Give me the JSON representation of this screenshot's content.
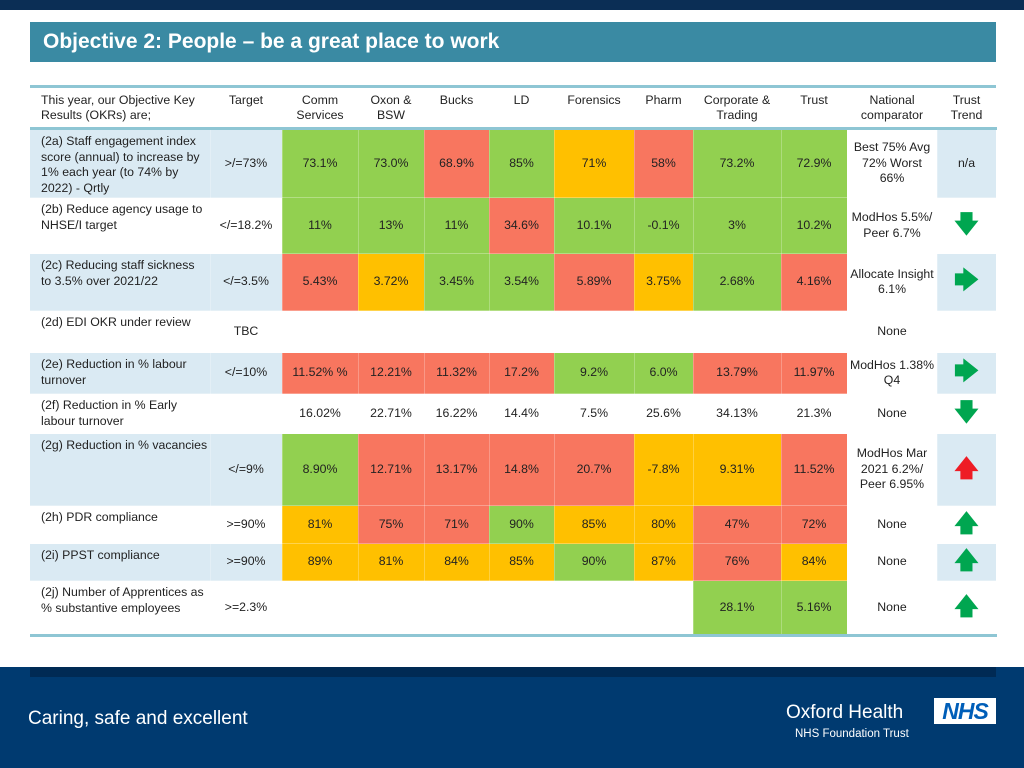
{
  "title": "Objective 2: People – be a great place to work",
  "colors": {
    "green": "#92d050",
    "red": "#f8765f",
    "amber": "#ffc000",
    "title_bar": "#3a8aa3",
    "footer": "#003a70"
  },
  "headers": [
    "This year, our Objective Key Results (OKRs) are;",
    "Target",
    "Comm Services",
    "Oxon & BSW",
    "Bucks",
    "LD",
    "Forensics",
    "Pharm",
    "Corporate & Trading",
    "Trust",
    "National comparator",
    "Trust Trend"
  ],
  "rows": [
    {
      "label": "(2a) Staff engagement index score (annual) to increase by 1% each year (to 74% by 2022) - Qrtly",
      "target": ">/=73%",
      "values": [
        "73.1%",
        "73.0%",
        "68.9%",
        "85%",
        "71%",
        "58%",
        "73.2%",
        "72.9%"
      ],
      "status": [
        "G",
        "G",
        "R",
        "G",
        "A",
        "R",
        "G",
        "G"
      ],
      "comparator": "Best 75% Avg 72% Worst 66%",
      "trend": "n/a",
      "trend_icon": "",
      "trend_color": ""
    },
    {
      "label": "(2b) Reduce agency usage to NHSE/I target",
      "target": "</=18.2%",
      "values": [
        "11%",
        "13%",
        "11%",
        "34.6%",
        "10.1%",
        "-0.1%",
        "3%",
        "10.2%"
      ],
      "status": [
        "G",
        "G",
        "G",
        "R",
        "G",
        "G",
        "G",
        "G"
      ],
      "comparator": "ModHos 5.5%/ Peer 6.7%",
      "trend": "",
      "trend_icon": "arrow-down",
      "trend_color": "#00a650"
    },
    {
      "label": "(2c) Reducing staff sickness to 3.5% over 2021/22",
      "target": "</=3.5%",
      "values": [
        "5.43%",
        "3.72%",
        "3.45%",
        "3.54%",
        "5.89%",
        "3.75%",
        "2.68%",
        "4.16%"
      ],
      "status": [
        "R",
        "A",
        "G",
        "G",
        "R",
        "A",
        "G",
        "R"
      ],
      "comparator": "Allocate Insight 6.1%",
      "trend": "",
      "trend_icon": "arrow-right",
      "trend_color": "#00a650"
    },
    {
      "label": "(2d) EDI OKR under review",
      "target": "TBC",
      "values": [
        "",
        "",
        "",
        "",
        "",
        "",
        "",
        ""
      ],
      "status": [
        "",
        "",
        "",
        "",
        "",
        "",
        "",
        ""
      ],
      "comparator": "None",
      "trend": "",
      "trend_icon": "",
      "trend_color": ""
    },
    {
      "label": "(2e) Reduction in % labour turnover",
      "target": "</=10%",
      "values": [
        "11.52% %",
        "12.21%",
        "11.32%",
        "17.2%",
        "9.2%",
        "6.0%",
        "13.79%",
        "11.97%"
      ],
      "status": [
        "R",
        "R",
        "R",
        "R",
        "G",
        "G",
        "R",
        "R"
      ],
      "comparator": "ModHos 1.38% Q4",
      "trend": "",
      "trend_icon": "arrow-right",
      "trend_color": "#00a650"
    },
    {
      "label": "(2f) Reduction in % Early labour turnover",
      "target": "",
      "values": [
        "16.02%",
        "22.71%",
        "16.22%",
        "14.4%",
        "7.5%",
        "25.6%",
        "34.13%",
        "21.3%"
      ],
      "status": [
        "",
        "",
        "",
        "",
        "",
        "",
        "",
        ""
      ],
      "comparator": "None",
      "trend": "",
      "trend_icon": "arrow-down",
      "trend_color": "#00a650"
    },
    {
      "label": "(2g) Reduction in % vacancies",
      "target": "</=9%",
      "values": [
        "8.90%",
        "12.71%",
        "13.17%",
        "14.8%",
        "20.7%",
        "-7.8%",
        "9.31%",
        "11.52%"
      ],
      "status": [
        "G",
        "R",
        "R",
        "R",
        "R",
        "A",
        "A",
        "R"
      ],
      "comparator": "ModHos Mar 2021 6.2%/ Peer 6.95%",
      "trend": "",
      "trend_icon": "arrow-up",
      "trend_color": "#ee1c25"
    },
    {
      "label": "(2h) PDR compliance",
      "target": ">=90%",
      "values": [
        "81%",
        "75%",
        "71%",
        "90%",
        "85%",
        "80%",
        "47%",
        "72%"
      ],
      "status": [
        "A",
        "R",
        "R",
        "G",
        "A",
        "A",
        "R",
        "R"
      ],
      "comparator": "None",
      "trend": "",
      "trend_icon": "arrow-up",
      "trend_color": "#00a650"
    },
    {
      "label": "(2i) PPST compliance",
      "target": ">=90%",
      "values": [
        "89%",
        "81%",
        "84%",
        "85%",
        "90%",
        "87%",
        "76%",
        "84%"
      ],
      "status": [
        "A",
        "A",
        "A",
        "A",
        "G",
        "A",
        "R",
        "A"
      ],
      "comparator": "None",
      "trend": "",
      "trend_icon": "arrow-up",
      "trend_color": "#00a650"
    },
    {
      "label": "(2j) Number of Apprentices as % substantive employees",
      "target": ">=2.3%",
      "values": [
        "",
        "",
        "",
        "",
        "",
        "",
        "28.1%",
        "5.16%"
      ],
      "status": [
        "",
        "",
        "",
        "",
        "",
        "",
        "G",
        "G"
      ],
      "comparator": "None",
      "trend": "",
      "trend_icon": "arrow-up",
      "trend_color": "#00a650"
    }
  ],
  "footer": {
    "motto": "Caring, safe and excellent",
    "org": "Oxford Health",
    "org_sub": "NHS Foundation Trust",
    "logo": "NHS"
  }
}
